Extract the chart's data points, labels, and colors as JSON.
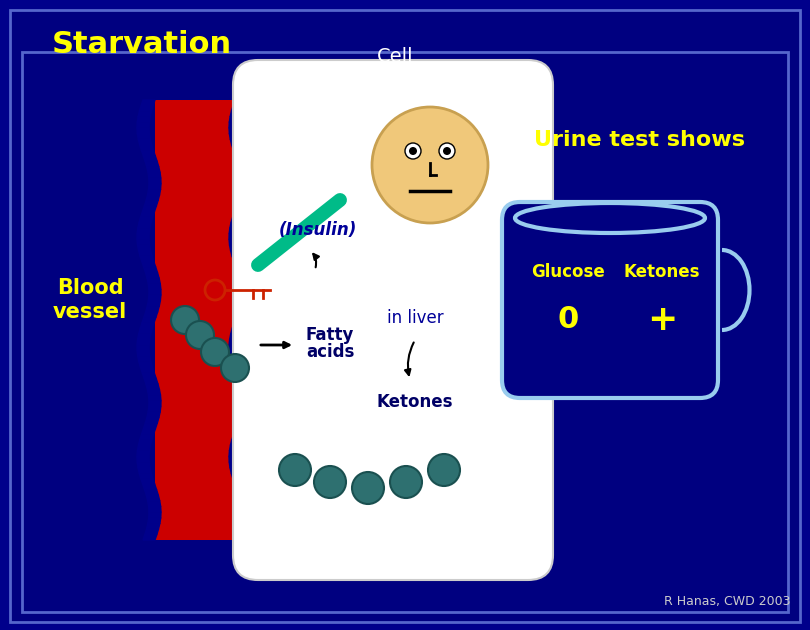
{
  "bg_color": "#00008B",
  "inner_bg": "#000080",
  "border_color": "#5566CC",
  "title": "Starvation",
  "title_color": "#FFFF00",
  "title_fontsize": 22,
  "cell_label": "Cell",
  "cell_label_color": "#FFFFFF",
  "blood_vessel_label": "Blood\nvessel",
  "blood_vessel_color": "#FFFF00",
  "urine_label": "Urine test shows",
  "urine_color": "#FFFF00",
  "insulin_label": "(Insulin)",
  "insulin_color": "#000099",
  "fatty_label": "Fatty\nacids",
  "in_liver_label": "in liver",
  "ketones_label": "Ketones",
  "glucose_label": "Glucose",
  "ketones_cup_label": "Ketones",
  "glucose_val": "0",
  "ketones_val": "+",
  "credit": "R Hanas, CWD 2003",
  "credit_color": "#CCCCCC",
  "red_vessel": "#CC0000",
  "green_strip": "#00BB88",
  "teal_dot": "#2E7070",
  "face_color": "#F0C87A",
  "mug_color": "#7AAAD8",
  "mug_edge": "#99CCEE",
  "label_color_dark": "#000066"
}
